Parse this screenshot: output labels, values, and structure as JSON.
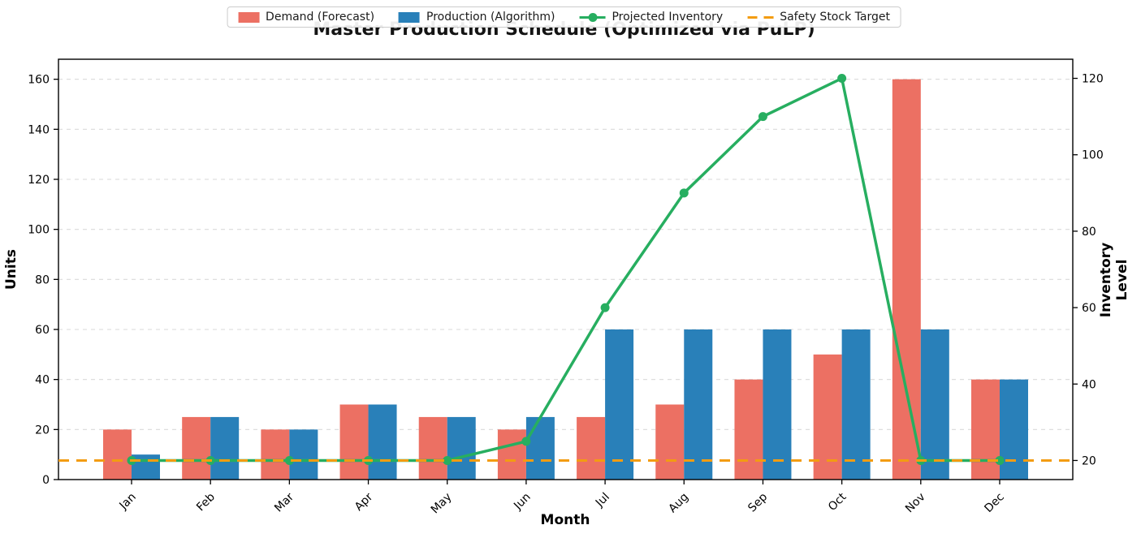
{
  "title": "Master Production Schedule (Optimized via PuLP)",
  "legend": {
    "items": [
      {
        "label": "Demand (Forecast)",
        "swatch": "bar",
        "color": "#ec7063"
      },
      {
        "label": "Production (Algorithm)",
        "swatch": "bar",
        "color": "#2980b9"
      },
      {
        "label": "Projected Inventory",
        "swatch": "line-marker",
        "color": "#27ae60"
      },
      {
        "label": "Safety Stock Target",
        "swatch": "dashed-line",
        "color": "#f39c12"
      }
    ]
  },
  "axes": {
    "left": {
      "label": "Units",
      "ticks": [
        0,
        20,
        40,
        60,
        80,
        100,
        120,
        140,
        160
      ],
      "range": [
        0,
        168
      ]
    },
    "right": {
      "label": "Inventory Level",
      "ticks": [
        20,
        40,
        60,
        80,
        100,
        120
      ],
      "range": [
        15,
        125
      ]
    },
    "x": {
      "label": "Month"
    }
  },
  "chart_data": {
    "type": "bar",
    "title": "Master Production Schedule (Optimized via PuLP)",
    "categories": [
      "Jan",
      "Feb",
      "Mar",
      "Apr",
      "May",
      "Jun",
      "Jul",
      "Aug",
      "Sep",
      "Oct",
      "Nov",
      "Dec"
    ],
    "series": [
      {
        "name": "Demand (Forecast)",
        "type": "bar",
        "axis": "left",
        "color": "#ec7063",
        "values": [
          20,
          25,
          20,
          30,
          25,
          20,
          25,
          30,
          40,
          50,
          160,
          40
        ]
      },
      {
        "name": "Production (Algorithm)",
        "type": "bar",
        "axis": "left",
        "color": "#2980b9",
        "values": [
          10,
          25,
          20,
          30,
          25,
          25,
          60,
          60,
          60,
          60,
          60,
          40
        ]
      },
      {
        "name": "Projected Inventory",
        "type": "line",
        "axis": "right",
        "color": "#27ae60",
        "marker": "circle",
        "values": [
          20,
          20,
          20,
          20,
          20,
          25,
          60,
          90,
          110,
          120,
          20,
          20
        ]
      },
      {
        "name": "Safety Stock Target",
        "type": "hline",
        "axis": "right",
        "color": "#f39c12",
        "style": "dashed",
        "value": 20
      }
    ],
    "xlabel": "Month",
    "ylabel": "Units",
    "ylabel_right": "Inventory Level",
    "ylim_left": [
      0,
      168
    ],
    "ylim_right": [
      15,
      125
    ],
    "grid": true,
    "grid_axis": "left",
    "legend_position": "top-center"
  },
  "colors": {
    "background": "#ffffff",
    "grid": "#d9d9d9",
    "spine": "#000000",
    "tick_text": "#000000",
    "title_text": "#141414"
  }
}
